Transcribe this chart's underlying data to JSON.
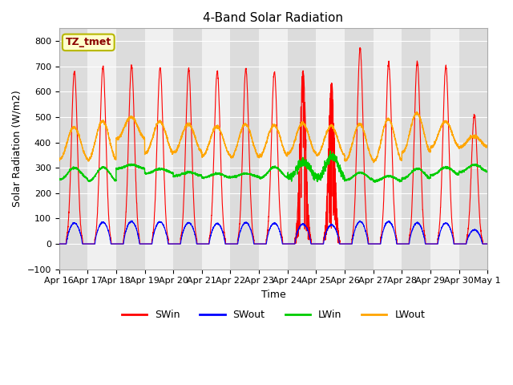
{
  "title": "4-Band Solar Radiation",
  "xlabel": "Time",
  "ylabel": "Solar Radiation (W/m2)",
  "ylim": [
    -100,
    850
  ],
  "yticks": [
    -100,
    0,
    100,
    200,
    300,
    400,
    500,
    600,
    700,
    800
  ],
  "x_labels": [
    "Apr 16",
    "Apr 17",
    "Apr 18",
    "Apr 19",
    "Apr 20",
    "Apr 21",
    "Apr 22",
    "Apr 23",
    "Apr 24",
    "Apr 25",
    "Apr 26",
    "Apr 27",
    "Apr 28",
    "Apr 29",
    "Apr 30",
    "May 1"
  ],
  "annotation_text": "TZ_tmet",
  "line_colors": {
    "SWin": "red",
    "SWout": "blue",
    "LWin": "#00CC00",
    "LWout": "orange"
  },
  "plot_bg_color": "#F0F0F0",
  "stripe_colors": [
    "#DCDCDC",
    "#F0F0F0"
  ],
  "n_days": 15,
  "points_per_day": 240,
  "SWin_peaks": [
    680,
    700,
    705,
    695,
    690,
    680,
    690,
    680,
    680,
    635,
    770,
    715,
    720,
    700,
    510
  ],
  "SWout_peaks": [
    82,
    85,
    88,
    87,
    83,
    80,
    84,
    82,
    78,
    75,
    88,
    88,
    83,
    82,
    55
  ],
  "LWin_base": [
    255,
    248,
    297,
    278,
    268,
    261,
    264,
    260,
    264,
    257,
    252,
    248,
    258,
    272,
    284
  ],
  "LWin_peak": [
    300,
    302,
    312,
    296,
    282,
    277,
    277,
    303,
    322,
    346,
    281,
    267,
    296,
    302,
    312
  ],
  "LWout_night": [
    335,
    332,
    415,
    358,
    362,
    347,
    342,
    347,
    357,
    350,
    330,
    327,
    362,
    382,
    382
  ],
  "LWout_day": [
    460,
    485,
    500,
    483,
    473,
    463,
    472,
    468,
    475,
    465,
    472,
    492,
    515,
    483,
    425
  ],
  "title_fontsize": 11,
  "axis_fontsize": 9,
  "legend_fontsize": 9,
  "tick_fontsize": 8
}
